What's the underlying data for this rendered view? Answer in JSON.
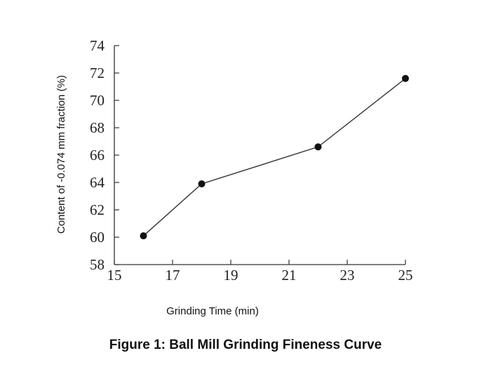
{
  "chart_data": {
    "type": "line",
    "xlabel": "Grinding Time (min)",
    "ylabel": "Content of -0.074 mm fraction (%)",
    "x": [
      16,
      18,
      22,
      25
    ],
    "series": [
      {
        "values": [
          60.1,
          63.9,
          66.6,
          71.6
        ]
      }
    ],
    "xlim": [
      15,
      25
    ],
    "ylim": [
      58,
      74
    ],
    "xticks": [
      15,
      17,
      19,
      21,
      23,
      25
    ],
    "yticks": [
      58,
      60,
      62,
      64,
      66,
      68,
      70,
      72,
      74
    ],
    "grid": false,
    "line_color": "#333333",
    "marker_color": "#111111"
  },
  "caption": "Figure 1: Ball Mill Grinding Fineness Curve"
}
